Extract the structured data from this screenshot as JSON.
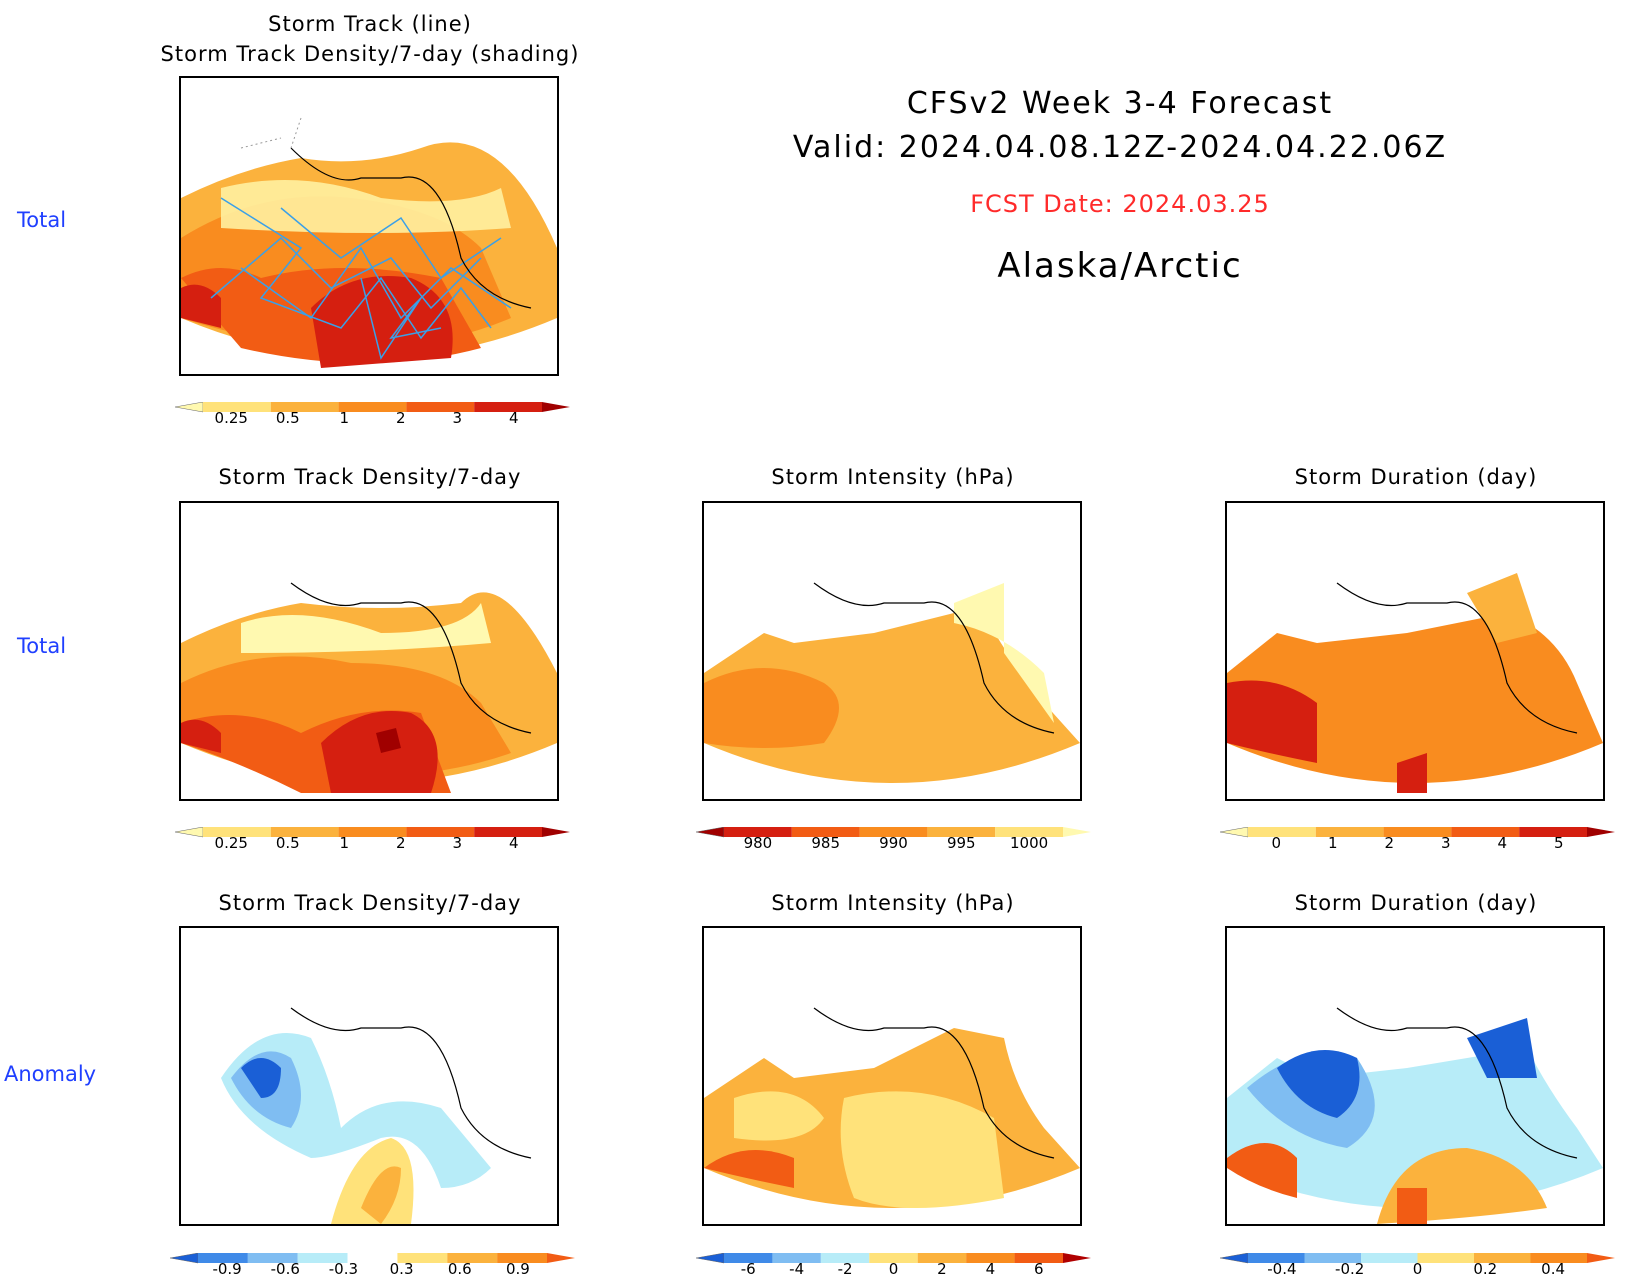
{
  "header": {
    "line1": "CFSv2 Week 3-4 Forecast",
    "line2": "Valid: 2024.04.08.12Z-2024.04.22.06Z",
    "fcst": "FCST Date: 2024.03.25",
    "region": "Alaska/Arctic"
  },
  "row_labels": [
    "Total",
    "Total",
    "Anomaly"
  ],
  "panels": {
    "p1": {
      "title1": "Storm Track (line)",
      "title2": "Storm Track Density/7-day (shading)"
    },
    "p2": {
      "title": "Storm Track Density/7-day"
    },
    "p3": {
      "title": "Storm Intensity (hPa)"
    },
    "p4": {
      "title": "Storm Duration (day)"
    },
    "p5": {
      "title": "Storm Track Density/7-day"
    },
    "p6": {
      "title": "Storm Intensity (hPa)"
    },
    "p7": {
      "title": "Storm Duration (day)"
    }
  },
  "colorbars": {
    "density_total": {
      "colors": [
        "#fff9b0",
        "#ffe27a",
        "#fbb23d",
        "#f98c1f",
        "#f25c14",
        "#d51f10",
        "#a00000"
      ],
      "ticks": [
        "0.25",
        "0.5",
        "1",
        "2",
        "3",
        "4"
      ]
    },
    "intensity_total": {
      "colors": [
        "#a00000",
        "#d51f10",
        "#f25c14",
        "#f98c1f",
        "#fbb23d",
        "#ffe27a",
        "#fff9b0"
      ],
      "ticks": [
        "980",
        "985",
        "990",
        "995",
        "1000"
      ]
    },
    "duration_total": {
      "colors": [
        "#fff9b0",
        "#ffe27a",
        "#fbb23d",
        "#f98c1f",
        "#f25c14",
        "#d51f10",
        "#a00000"
      ],
      "ticks": [
        "0",
        "1",
        "2",
        "3",
        "4",
        "5"
      ]
    },
    "density_anom": {
      "colors": [
        "#1a5fd6",
        "#3f8ae8",
        "#7fbdf2",
        "#b7ecf8",
        "#ffffff",
        "#ffe27a",
        "#fbb23d",
        "#f98c1f",
        "#f25c14"
      ],
      "ticks": [
        "-0.9",
        "-0.6",
        "-0.3",
        "0.3",
        "0.6",
        "0.9"
      ]
    },
    "intensity_anom": {
      "colors": [
        "#1a5fd6",
        "#3f8ae8",
        "#7fbdf2",
        "#b7ecf8",
        "#ffe27a",
        "#fbb23d",
        "#f98c1f",
        "#f25c14",
        "#b00000"
      ],
      "ticks": [
        "-6",
        "-4",
        "-2",
        "0",
        "2",
        "4",
        "6"
      ]
    },
    "duration_anom": {
      "colors": [
        "#1a5fd6",
        "#3f8ae8",
        "#7fbdf2",
        "#b7ecf8",
        "#ffe27a",
        "#fbb23d",
        "#f98c1f",
        "#f25c14"
      ],
      "ticks": [
        "-0.4",
        "-0.2",
        "0",
        "0.2",
        "0.4"
      ]
    }
  }
}
